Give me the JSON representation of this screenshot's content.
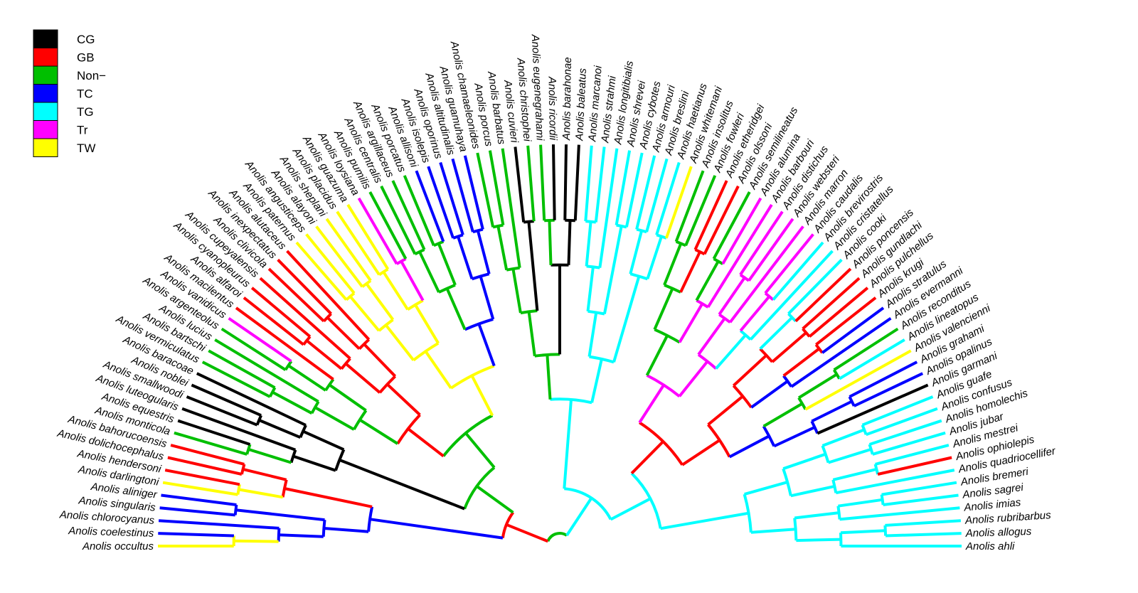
{
  "legend": [
    {
      "code": "CG",
      "label": "CG",
      "color": "#000000"
    },
    {
      "code": "GB",
      "label": "GB",
      "color": "#ff0000"
    },
    {
      "code": "NON",
      "label": "Non−",
      "color": "#00bf00"
    },
    {
      "code": "TC",
      "label": "TC",
      "color": "#0000ff"
    },
    {
      "code": "TG",
      "label": "TG",
      "color": "#00ffff"
    },
    {
      "code": "TR",
      "label": "Tr",
      "color": "#ff00ff"
    },
    {
      "code": "TW",
      "label": "TW",
      "color": "#ffff00"
    }
  ],
  "tips": [
    {
      "name": "Anolis occultus",
      "state": "TW"
    },
    {
      "name": "Anolis coelestinus",
      "state": "TC"
    },
    {
      "name": "Anolis chlorocyanus",
      "state": "TC"
    },
    {
      "name": "Anolis singularis",
      "state": "TC"
    },
    {
      "name": "Anolis aliniger",
      "state": "TC"
    },
    {
      "name": "Anolis darlingtoni",
      "state": "TW"
    },
    {
      "name": "Anolis hendersoni",
      "state": "GB"
    },
    {
      "name": "Anolis dolichocephalus",
      "state": "GB"
    },
    {
      "name": "Anolis bahorucoensis",
      "state": "GB"
    },
    {
      "name": "Anolis monticola",
      "state": "NON"
    },
    {
      "name": "Anolis equestris",
      "state": "CG"
    },
    {
      "name": "Anolis luteogularis",
      "state": "CG"
    },
    {
      "name": "Anolis smallwoodi",
      "state": "CG"
    },
    {
      "name": "Anolis noblei",
      "state": "CG"
    },
    {
      "name": "Anolis baracoae",
      "state": "CG"
    },
    {
      "name": "Anolis vermiculatus",
      "state": "NON"
    },
    {
      "name": "Anolis bartschi",
      "state": "NON"
    },
    {
      "name": "Anolis lucius",
      "state": "NON"
    },
    {
      "name": "Anolis argenteolus",
      "state": "NON"
    },
    {
      "name": "Anolis vanidicus",
      "state": "TR"
    },
    {
      "name": "Anolis macilentus",
      "state": "GB"
    },
    {
      "name": "Anolis alfaroi",
      "state": "GB"
    },
    {
      "name": "Anolis cyanopleurus",
      "state": "GB"
    },
    {
      "name": "Anolis cupeyalensis",
      "state": "GB"
    },
    {
      "name": "Anolis clivicola",
      "state": "GB"
    },
    {
      "name": "Anolis inexpectatus",
      "state": "GB"
    },
    {
      "name": "Anolis alutaceus",
      "state": "GB"
    },
    {
      "name": "Anolis paternus",
      "state": "TW"
    },
    {
      "name": "Anolis angusticeps",
      "state": "TW"
    },
    {
      "name": "Anolis alayoni",
      "state": "TW"
    },
    {
      "name": "Anolis sheplani",
      "state": "TW"
    },
    {
      "name": "Anolis placidus",
      "state": "TW"
    },
    {
      "name": "Anolis guazuma",
      "state": "TW"
    },
    {
      "name": "Anolis loysiana",
      "state": "TR"
    },
    {
      "name": "Anolis pumilis",
      "state": "NON"
    },
    {
      "name": "Anolis centralis",
      "state": "NON"
    },
    {
      "name": "Anolis argillaceus",
      "state": "NON"
    },
    {
      "name": "Anolis porcatus",
      "state": "NON"
    },
    {
      "name": "Anolis allisoni",
      "state": "TC"
    },
    {
      "name": "Anolis isolepis",
      "state": "TC"
    },
    {
      "name": "Anolis oporinus",
      "state": "TC"
    },
    {
      "name": "Anolis altitudinalis",
      "state": "TC"
    },
    {
      "name": "Anolis guamuhaya",
      "state": "TC"
    },
    {
      "name": "Anolis chamaeleonides",
      "state": "NON"
    },
    {
      "name": "Anolis porcus",
      "state": "NON"
    },
    {
      "name": "Anolis barbatus",
      "state": "NON"
    },
    {
      "name": "Anolis cuvieri",
      "state": "CG"
    },
    {
      "name": "Anolis christophei",
      "state": "NON"
    },
    {
      "name": "Anolis eugenegrahami",
      "state": "NON"
    },
    {
      "name": "Anolis ricordii",
      "state": "CG"
    },
    {
      "name": "Anolis barahonae",
      "state": "CG"
    },
    {
      "name": "Anolis baleatus",
      "state": "CG"
    },
    {
      "name": "Anolis marcanoi",
      "state": "TG"
    },
    {
      "name": "Anolis strahmi",
      "state": "TG"
    },
    {
      "name": "Anolis longitibialis",
      "state": "TG"
    },
    {
      "name": "Anolis shrevei",
      "state": "TG"
    },
    {
      "name": "Anolis cybotes",
      "state": "TG"
    },
    {
      "name": "Anolis armouri",
      "state": "TG"
    },
    {
      "name": "Anolis breslini",
      "state": "TG"
    },
    {
      "name": "Anolis haetianus",
      "state": "TG"
    },
    {
      "name": "Anolis whitemani",
      "state": "TW"
    },
    {
      "name": "Anolis insolitus",
      "state": "NON"
    },
    {
      "name": "Anolis fowleri",
      "state": "NON"
    },
    {
      "name": "Anolis etheridgei",
      "state": "GB"
    },
    {
      "name": "Anolis olssoni",
      "state": "GB"
    },
    {
      "name": "Anolis semilineatus",
      "state": "NON"
    },
    {
      "name": "Anolis alumina",
      "state": "TR"
    },
    {
      "name": "Anolis barbouri",
      "state": "TR"
    },
    {
      "name": "Anolis distichus",
      "state": "TR"
    },
    {
      "name": "Anolis websteri",
      "state": "TR"
    },
    {
      "name": "Anolis marron",
      "state": "TR"
    },
    {
      "name": "Anolis caudalis",
      "state": "TR"
    },
    {
      "name": "Anolis brevirostris",
      "state": "TG"
    },
    {
      "name": "Anolis cristatellus",
      "state": "TG"
    },
    {
      "name": "Anolis cooki",
      "state": "TG"
    },
    {
      "name": "Anolis poncensis",
      "state": "GB"
    },
    {
      "name": "Anolis gundlachi",
      "state": "GB"
    },
    {
      "name": "Anolis pulchellus",
      "state": "GB"
    },
    {
      "name": "Anolis krugi",
      "state": "GB"
    },
    {
      "name": "Anolis stratulus",
      "state": "TC"
    },
    {
      "name": "Anolis evermanni",
      "state": "TC"
    },
    {
      "name": "Anolis reconditus",
      "state": "NON"
    },
    {
      "name": "Anolis lineatopus",
      "state": "TG"
    },
    {
      "name": "Anolis valencienni",
      "state": "TW"
    },
    {
      "name": "Anolis grahami",
      "state": "TC"
    },
    {
      "name": "Anolis opalinus",
      "state": "TC"
    },
    {
      "name": "Anolis garmani",
      "state": "CG"
    },
    {
      "name": "Anolis guafe",
      "state": "TG"
    },
    {
      "name": "Anolis confusus",
      "state": "TG"
    },
    {
      "name": "Anolis homolechis",
      "state": "TG"
    },
    {
      "name": "Anolis jubar",
      "state": "TG"
    },
    {
      "name": "Anolis mestrei",
      "state": "TG"
    },
    {
      "name": "Anolis ophiolepis",
      "state": "GB"
    },
    {
      "name": "Anolis quadriocellifer",
      "state": "TG"
    },
    {
      "name": "Anolis bremeri",
      "state": "TG"
    },
    {
      "name": "Anolis sagrei",
      "state": "TG"
    },
    {
      "name": "Anolis imias",
      "state": "TG"
    },
    {
      "name": "Anolis rubribarbus",
      "state": "TG"
    },
    {
      "name": "Anolis allogus",
      "state": "TG"
    },
    {
      "name": "Anolis ahli",
      "state": "TG"
    }
  ]
}
